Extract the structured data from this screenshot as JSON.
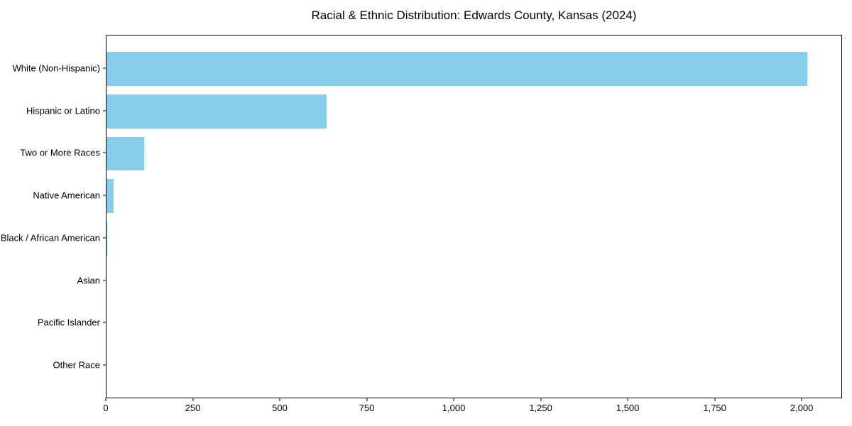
{
  "chart_data": {
    "type": "bar",
    "orientation": "horizontal",
    "title": "Racial & Ethnic Distribution: Edwards County, Kansas (2024)",
    "categories": [
      "White (Non-Hispanic)",
      "Hispanic or Latino",
      "Two or More Races",
      "Native American",
      "Black / African American",
      "Asian",
      "Pacific Islander",
      "Other Race"
    ],
    "values": [
      2014,
      633,
      109,
      21,
      2,
      0,
      0,
      0
    ],
    "xlabel": "",
    "ylabel": "",
    "xlim": [
      0,
      2116
    ],
    "x_ticks": [
      0,
      250,
      500,
      750,
      1000,
      1250,
      1500,
      1750,
      2000
    ],
    "x_tick_labels": [
      "0",
      "250",
      "500",
      "750",
      "1,000",
      "1,250",
      "1,500",
      "1,750",
      "2,000"
    ],
    "bar_color": "#87CEEB",
    "spine_color": "#000000",
    "background_color": "#ffffff",
    "grid": false,
    "legend": null
  }
}
